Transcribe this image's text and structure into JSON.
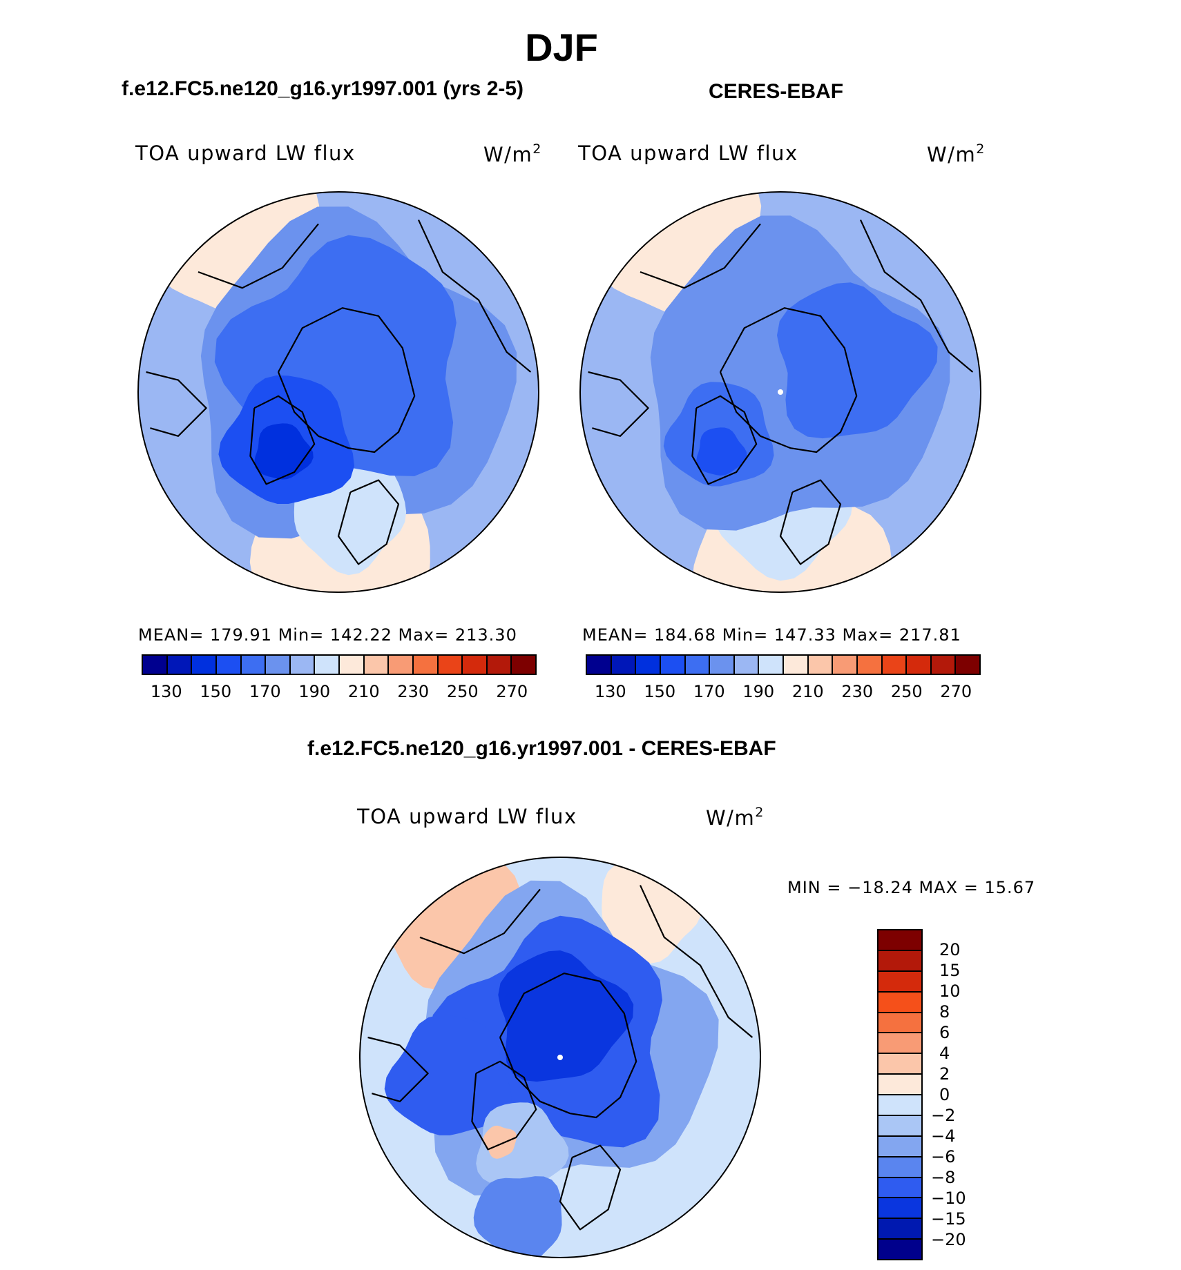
{
  "title": "DJF",
  "panels": [
    {
      "title": "f.e12.FC5.ne120_g16.yr1997.001 (yrs 2-5)",
      "variable": "TOA upward LW flux",
      "units": "W/m",
      "units_exp": "2",
      "stats": "MEAN= 179.91   Min= 142.22   Max= 213.30"
    },
    {
      "title": "CERES-EBAF",
      "variable": "TOA upward LW flux",
      "units": "W/m",
      "units_exp": "2",
      "stats": "MEAN= 184.68   Min= 147.33   Max= 217.81"
    },
    {
      "title": "f.e12.FC5.ne120_g16.yr1997.001 - CERES-EBAF",
      "variable": "TOA upward LW flux",
      "units": "W/m",
      "units_exp": "2",
      "stats": "MIN = −18.24 MAX =   15.67"
    }
  ],
  "chart_data": [
    {
      "type": "heatmap",
      "projection": "north polar stereographic",
      "title": "f.e12.FC5.ne120_g16.yr1997.001 (yrs 2-5)",
      "variable": "TOA upward LW flux",
      "units": "W/m2",
      "mean": 179.91,
      "min": 142.22,
      "max": 213.3,
      "colorbar_ticks": [
        130,
        150,
        170,
        190,
        210,
        230,
        250,
        270
      ],
      "colorbar_levels": [
        130,
        140,
        150,
        160,
        170,
        180,
        190,
        200,
        210,
        220,
        230,
        240,
        250,
        260,
        270
      ],
      "colorbar_colors": [
        "#00008f",
        "#0017b8",
        "#0030de",
        "#1c4ff2",
        "#3d6ef2",
        "#6b92ee",
        "#9bb7f3",
        "#cfe3fb",
        "#fde9da",
        "#fbc6aa",
        "#f89b75",
        "#f5713f",
        "#ea4418",
        "#d42a0c",
        "#b3190a",
        "#7d0000"
      ]
    },
    {
      "type": "heatmap",
      "projection": "north polar stereographic",
      "title": "CERES-EBAF",
      "variable": "TOA upward LW flux",
      "units": "W/m2",
      "mean": 184.68,
      "min": 147.33,
      "max": 217.81,
      "colorbar_ticks": [
        130,
        150,
        170,
        190,
        210,
        230,
        250,
        270
      ],
      "colorbar_levels": [
        130,
        140,
        150,
        160,
        170,
        180,
        190,
        200,
        210,
        220,
        230,
        240,
        250,
        260,
        270
      ],
      "colorbar_colors": [
        "#00008f",
        "#0017b8",
        "#0030de",
        "#1c4ff2",
        "#3d6ef2",
        "#6b92ee",
        "#9bb7f3",
        "#cfe3fb",
        "#fde9da",
        "#fbc6aa",
        "#f89b75",
        "#f5713f",
        "#ea4418",
        "#d42a0c",
        "#b3190a",
        "#7d0000"
      ]
    },
    {
      "type": "heatmap",
      "projection": "north polar stereographic",
      "title": "f.e12.FC5.ne120_g16.yr1997.001 - CERES-EBAF",
      "variable": "TOA upward LW flux",
      "units": "W/m2",
      "min": -18.24,
      "max": 15.67,
      "colorbar_labels": [
        "20",
        "15",
        "10",
        "8",
        "6",
        "4",
        "2",
        "0",
        "−2",
        "−4",
        "−6",
        "−8",
        "−10",
        "−15",
        "−20"
      ],
      "colorbar_colors": [
        "#7d0000",
        "#b3190a",
        "#d42a0c",
        "#f5501a",
        "#f5713f",
        "#f89b75",
        "#fbc6aa",
        "#fde9da",
        "#cfe3fb",
        "#aac6f5",
        "#83a6f0",
        "#5a85ef",
        "#2f5cf0",
        "#0a36df",
        "#0019b0",
        "#00008c"
      ]
    }
  ]
}
